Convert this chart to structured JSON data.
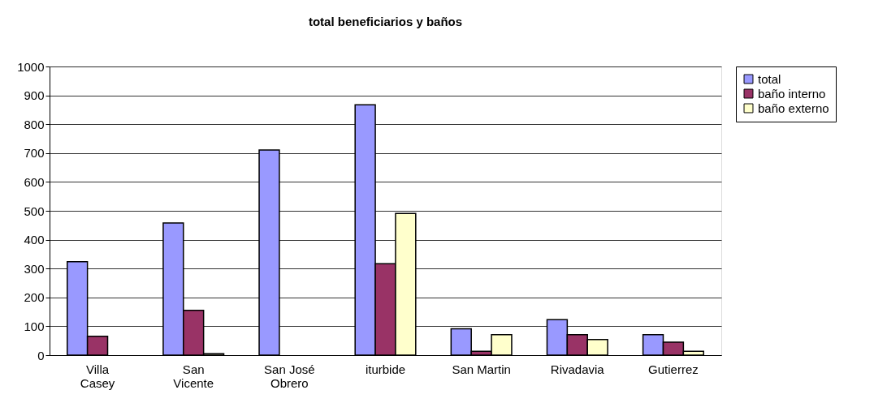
{
  "chart_data": {
    "type": "bar",
    "title": "total beneficiarios y baños",
    "categories": [
      "Villa Casey",
      "San Vicente",
      "San José Obrero",
      "iturbide",
      "San Martin",
      "Rivadavia",
      "Gutierrez"
    ],
    "series": [
      {
        "name": "total",
        "color": "#9999ff",
        "values": [
          324,
          458,
          711,
          867,
          91,
          123,
          71
        ]
      },
      {
        "name": "baño interno",
        "color": "#993366",
        "values": [
          65,
          155,
          0,
          317,
          13,
          71,
          45
        ]
      },
      {
        "name": "baño externo",
        "color": "#ffffcc",
        "values": [
          0,
          5,
          0,
          491,
          71,
          54,
          13
        ]
      }
    ],
    "ylim": [
      0,
      1000
    ],
    "yticks": [
      0,
      100,
      200,
      300,
      400,
      500,
      600,
      700,
      800,
      900,
      1000
    ],
    "grid": "y",
    "legend": "right"
  }
}
